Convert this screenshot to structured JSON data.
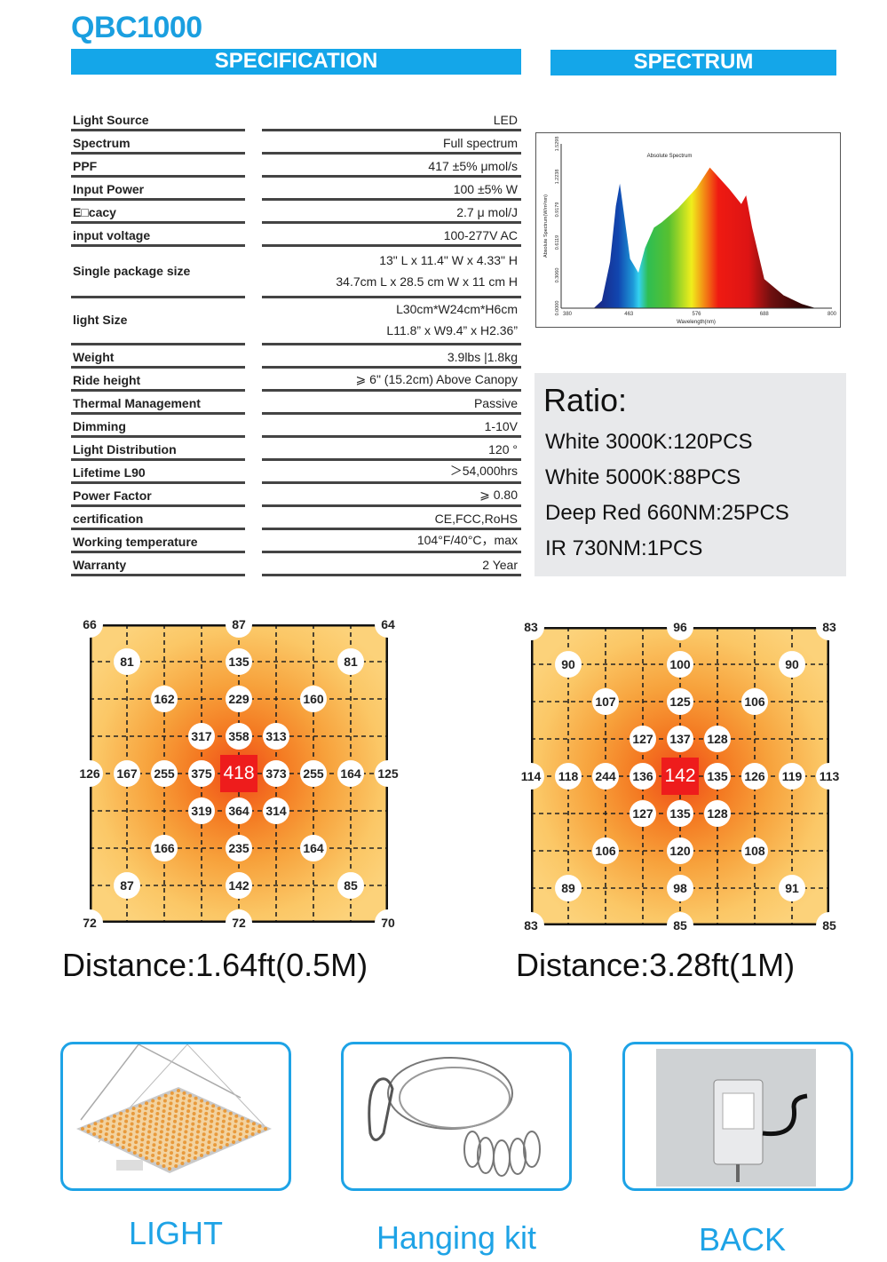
{
  "header": {
    "model": "QBC1000",
    "spec_title": "SPECIFICATION",
    "spectrum_title": "SPECTRUM"
  },
  "specs": [
    {
      "label": "Light Source",
      "value": [
        "LED"
      ]
    },
    {
      "label": "Spectrum",
      "value": [
        "Full spectrum"
      ]
    },
    {
      "label": "PPF",
      "value": [
        "417 ±5% μmol/s"
      ]
    },
    {
      "label": "Input Power",
      "value": [
        "100 ±5% W"
      ]
    },
    {
      "label": "E□cacy",
      "value": [
        "2.7 μ mol/J"
      ]
    },
    {
      "label": "input voltage",
      "value": [
        "100-277V AC"
      ]
    },
    {
      "label": "Single package size",
      "value": [
        "13\" L x 11.4\" W x 4.33\" H",
        "34.7cm L x 28.5 cm W x 11 cm H"
      ]
    },
    {
      "label": "light Size",
      "value": [
        "L30cm*W24cm*H6cm",
        "L11.8”  x W9.4”  x H2.36”"
      ]
    },
    {
      "label": "Weight",
      "value": [
        "3.9lbs |1.8kg"
      ]
    },
    {
      "label": "Ride height",
      "value": [
        "⩾  6\" (15.2cm) Above Canopy"
      ]
    },
    {
      "label": "Thermal Management",
      "value": [
        "Passive"
      ]
    },
    {
      "label": "Dimming",
      "value": [
        "1-10V"
      ]
    },
    {
      "label": "Light Distribution",
      "value": [
        "120 °"
      ]
    },
    {
      "label": "Lifetime L90",
      "value": [
        "＞54,000hrs"
      ]
    },
    {
      "label": "Power Factor",
      "value": [
        "⩾  0.80"
      ]
    },
    {
      "label": "certification",
      "value": [
        "CE,FCC,RoHS"
      ]
    },
    {
      "label": "Working temperature",
      "value": [
        "104°F/40°C，max"
      ]
    },
    {
      "label": "Warranty",
      "value": [
        "2 Year"
      ]
    }
  ],
  "chart_data": {
    "type": "area",
    "title": "Absolute Spectrum",
    "xlabel": "Wavelength(nm)",
    "ylabel": "Absolute Spectrum(W/m²nm)",
    "x_ticks": [
      "380",
      "463",
      "576",
      "688",
      "800"
    ],
    "x_tick_values": [
      380,
      463,
      576,
      688,
      800
    ],
    "y_ticks": [
      "0.0000",
      "0.3060",
      "0.6119",
      "0.9179",
      "1.2238",
      "1.5298"
    ],
    "ylim": [
      0,
      1.5298
    ],
    "x": [
      420,
      430,
      440,
      447,
      452,
      458,
      465,
      479,
      490,
      505,
      518,
      545,
      576,
      598,
      630,
      650,
      658,
      668,
      688,
      720,
      750,
      773
    ],
    "y": [
      0,
      0.07,
      0.43,
      0.95,
      1.16,
      0.82,
      0.46,
      0.33,
      0.56,
      0.75,
      0.8,
      0.93,
      1.12,
      1.31,
      1.11,
      0.97,
      1.05,
      0.75,
      0.27,
      0.12,
      0.04,
      0
    ]
  },
  "ratio": {
    "title": "Ratio:",
    "items": [
      "White 3000K:120PCS",
      "White 5000K:88PCS",
      "Deep Red 660NM:25PCS",
      "IR 730NM:1PCS"
    ]
  },
  "ppfd_maps": [
    {
      "distance": "Distance:1.64ft(0.5M)",
      "rows": [
        [
          66,
          null,
          null,
          null,
          87,
          null,
          null,
          null,
          64
        ],
        [
          null,
          81,
          null,
          null,
          135,
          null,
          null,
          81,
          null
        ],
        [
          null,
          null,
          162,
          null,
          229,
          null,
          160,
          null,
          null
        ],
        [
          null,
          null,
          null,
          317,
          358,
          313,
          null,
          null,
          null
        ],
        [
          126,
          167,
          255,
          375,
          418,
          373,
          255,
          164,
          125
        ],
        [
          null,
          null,
          null,
          319,
          364,
          314,
          null,
          null,
          null
        ],
        [
          null,
          null,
          166,
          null,
          235,
          null,
          164,
          null,
          null
        ],
        [
          null,
          87,
          null,
          null,
          142,
          null,
          null,
          85,
          null
        ],
        [
          72,
          null,
          null,
          null,
          72,
          null,
          null,
          null,
          70
        ]
      ]
    },
    {
      "distance": "Distance:3.28ft(1M)",
      "rows": [
        [
          83,
          null,
          null,
          null,
          96,
          null,
          null,
          null,
          83
        ],
        [
          null,
          90,
          null,
          null,
          100,
          null,
          null,
          90,
          null
        ],
        [
          null,
          null,
          107,
          null,
          125,
          null,
          106,
          null,
          null
        ],
        [
          null,
          null,
          null,
          127,
          137,
          128,
          null,
          null,
          null
        ],
        [
          114,
          118,
          244,
          136,
          142,
          135,
          126,
          119,
          113
        ],
        [
          null,
          null,
          null,
          127,
          135,
          128,
          null,
          null,
          null
        ],
        [
          null,
          null,
          106,
          null,
          120,
          null,
          108,
          null,
          null
        ],
        [
          null,
          89,
          null,
          null,
          98,
          null,
          null,
          91,
          null
        ],
        [
          83,
          null,
          null,
          null,
          85,
          null,
          null,
          null,
          85
        ]
      ]
    }
  ],
  "products": [
    {
      "label": "LIGHT",
      "icon": "grow-light-panel"
    },
    {
      "label": "Hanging kit",
      "icon": "hanging-kit"
    },
    {
      "label": "BACK",
      "icon": "driver-back"
    }
  ],
  "colors": {
    "accent": "#14a6e9",
    "ratio_bg": "#e8e9eb",
    "heat_center": "#ee1c1c"
  }
}
